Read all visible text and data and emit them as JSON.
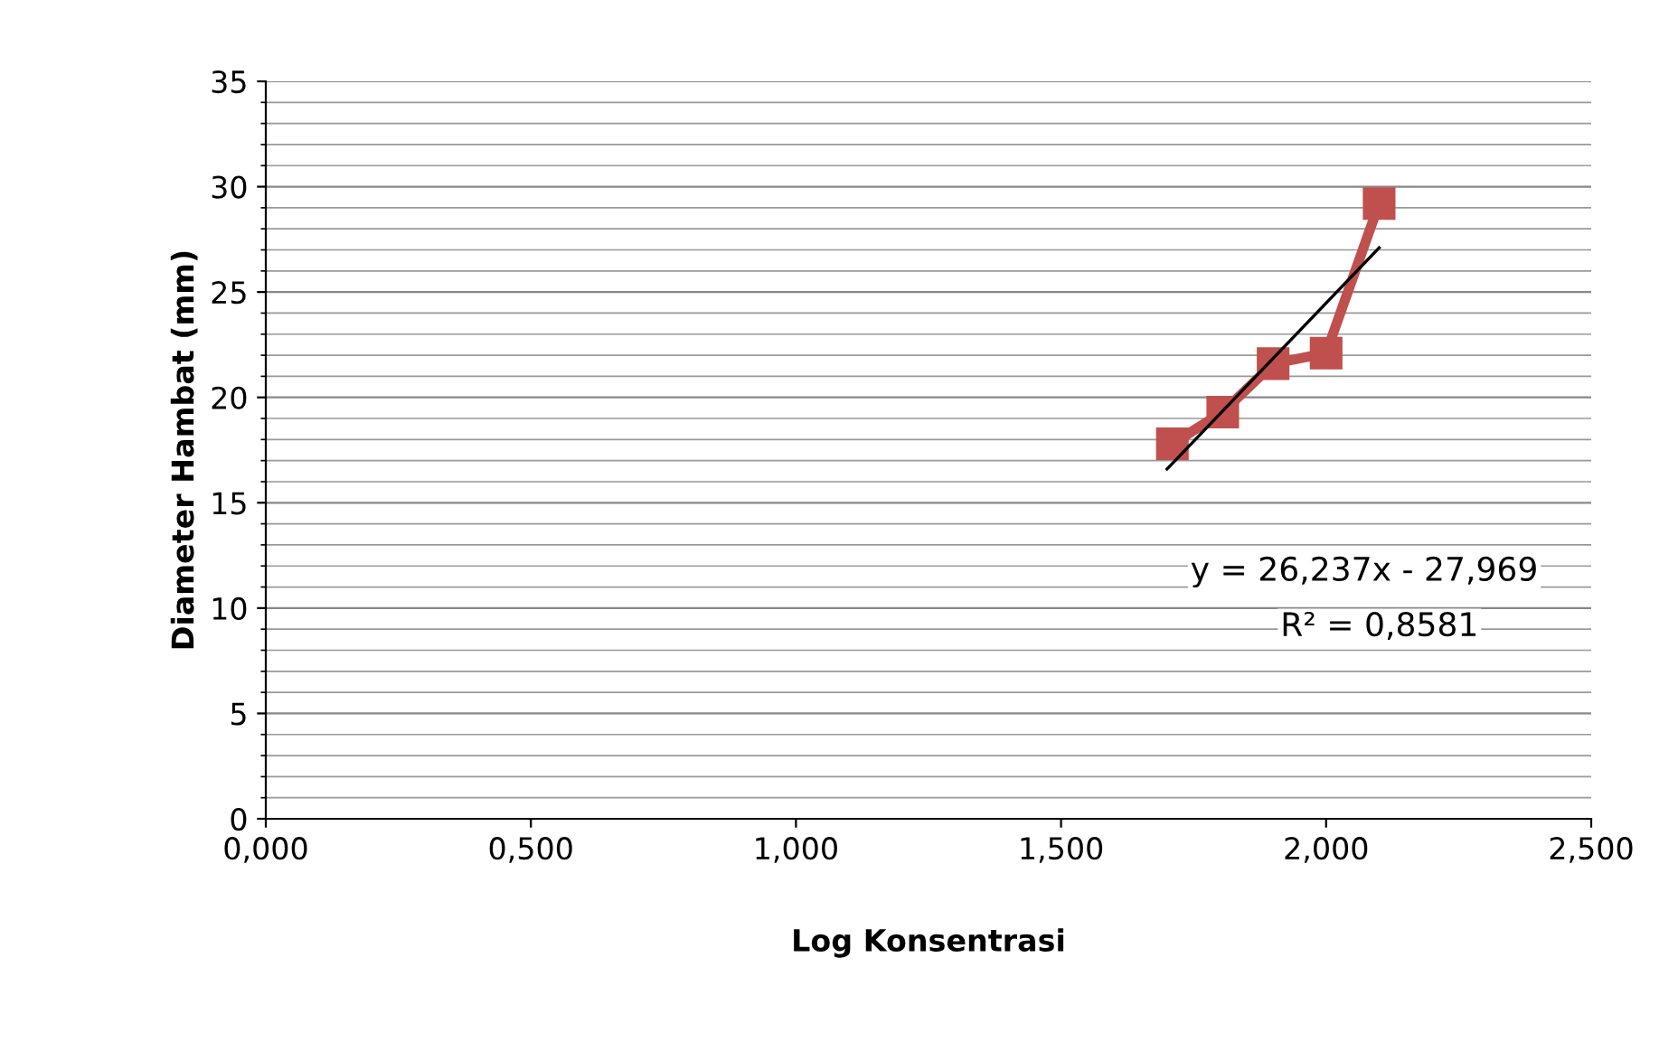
{
  "chart_data": {
    "type": "line",
    "xlabel": "Log Konsentrasi",
    "ylabel": "Diameter Hambat (mm)",
    "xlim": [
      0,
      2.5
    ],
    "xticks": [
      {
        "value": 0,
        "label": "0,000"
      },
      {
        "value": 0.5,
        "label": "0,500"
      },
      {
        "value": 1,
        "label": "1,000"
      },
      {
        "value": 1.5,
        "label": "1,500"
      },
      {
        "value": 2,
        "label": "2,000"
      },
      {
        "value": 2.5,
        "label": "2,500"
      }
    ],
    "ylim": [
      0,
      35
    ],
    "yticks": [
      0,
      5,
      10,
      15,
      20,
      25,
      30,
      35
    ],
    "grid": "y",
    "legend": false,
    "series": [
      {
        "color": "#c0504d",
        "marker": "square",
        "line_style": "solid",
        "x": [
          1.71,
          1.805,
          1.9,
          2.0,
          2.1
        ],
        "values": [
          17.8,
          19.3,
          21.6,
          22.1,
          29.2
        ]
      },
      {
        "color": "#000000",
        "marker": "none",
        "line_style": "solid",
        "x": [
          1.7,
          2.1
        ],
        "values": [
          16.6,
          27.1
        ]
      }
    ],
    "annotations": [
      "y = 26,237x - 27,969",
      "R² = 0,8581"
    ]
  }
}
